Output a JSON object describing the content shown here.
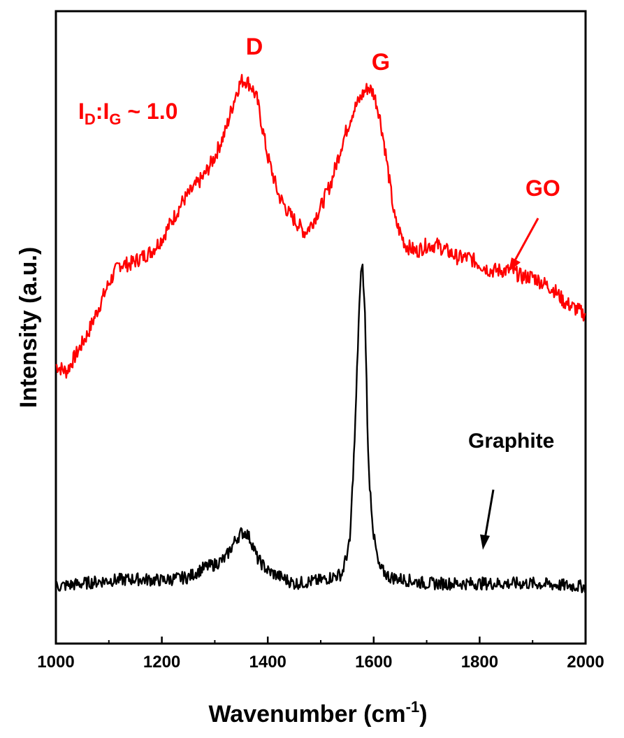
{
  "chart_data": {
    "type": "line",
    "xlabel": "Wavenumber (cm",
    "xlabel_sup": "-1",
    "xlabel_close": ")",
    "ylabel": "Intensity (a.u.)",
    "xlim": [
      1000,
      2000
    ],
    "ylim": [
      0,
      100
    ],
    "y_ticks_shown": false,
    "grid": false,
    "x_ticks": [
      1000,
      1200,
      1400,
      1600,
      1800,
      2000
    ],
    "x_tick_labels": [
      "1000",
      "1200",
      "1400",
      "1600",
      "1800",
      "2000"
    ],
    "series": [
      {
        "name": "GO",
        "color": "#ff0000",
        "x": [
          1000,
          1020,
          1040,
          1060,
          1080,
          1100,
          1120,
          1140,
          1160,
          1180,
          1200,
          1220,
          1240,
          1260,
          1280,
          1300,
          1320,
          1340,
          1350,
          1360,
          1370,
          1380,
          1400,
          1420,
          1440,
          1460,
          1470,
          1480,
          1500,
          1520,
          1540,
          1560,
          1580,
          1590,
          1600,
          1610,
          1620,
          1640,
          1660,
          1680,
          1700,
          1720,
          1740,
          1760,
          1780,
          1800,
          1820,
          1840,
          1860,
          1880,
          1900,
          1920,
          1940,
          1960,
          1980,
          2000
        ],
        "values": [
          44,
          43,
          46,
          49,
          53,
          57,
          60,
          60,
          61,
          62,
          64,
          67,
          70,
          72,
          74,
          77,
          81,
          87,
          89,
          89,
          88,
          86,
          77,
          71,
          68,
          66,
          65,
          66,
          69,
          73,
          79,
          84,
          87,
          88,
          87,
          84,
          79,
          67,
          63,
          62,
          63,
          63,
          62,
          61,
          61,
          60,
          59,
          59,
          59,
          58,
          58,
          57,
          56,
          54,
          53,
          52
        ],
        "noise": 1.2
      },
      {
        "name": "Graphite",
        "color": "#000000",
        "x": [
          1000,
          1050,
          1100,
          1150,
          1200,
          1250,
          1280,
          1300,
          1320,
          1340,
          1350,
          1360,
          1370,
          1380,
          1400,
          1450,
          1500,
          1540,
          1555,
          1565,
          1572,
          1578,
          1584,
          1590,
          1600,
          1610,
          1630,
          1700,
          1800,
          1900,
          2000
        ],
        "values": [
          9,
          9.5,
          10,
          10.2,
          10,
          10.5,
          12,
          12.5,
          13.5,
          16.5,
          17.5,
          17.5,
          16,
          13.5,
          11.5,
          9.5,
          10,
          11,
          16,
          34,
          52,
          61,
          51,
          28,
          17,
          12,
          10.5,
          9.5,
          9.5,
          9.5,
          9
        ],
        "noise": 1.0
      }
    ],
    "annotations": {
      "d_label": "D",
      "g_label": "G",
      "ratio_I": "I",
      "ratio_D": "D",
      "ratio_colon": ":I",
      "ratio_G": "G",
      "ratio_value": " ~ 1.0",
      "go_label": "GO",
      "graphite_label": "Graphite"
    }
  }
}
